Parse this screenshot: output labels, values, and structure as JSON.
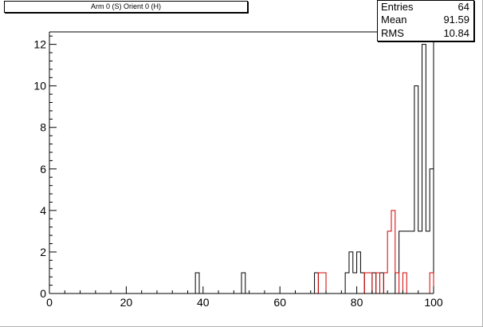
{
  "chart_data": {
    "type": "histogram",
    "title": "Arm 0 (S) Orient 0 (H)",
    "xlabel": "",
    "ylabel": "",
    "xlim": [
      0,
      100
    ],
    "ylim": [
      0,
      12.6
    ],
    "bin_width": 1,
    "x_ticks": [
      "0",
      "20",
      "40",
      "60",
      "80",
      "100"
    ],
    "y_ticks": [
      "0",
      "2",
      "4",
      "6",
      "8",
      "10",
      "12"
    ],
    "stats": {
      "entries_label": "Entries",
      "entries": "64",
      "mean_label": "Mean",
      "mean": "91.59",
      "rms_label": "RMS",
      "rms": "10.84"
    },
    "series": [
      {
        "color": "#000000",
        "bins": [
          {
            "x": 38,
            "y": 1
          },
          {
            "x": 50,
            "y": 1
          },
          {
            "x": 69,
            "y": 1
          },
          {
            "x": 77,
            "y": 1
          },
          {
            "x": 78,
            "y": 2
          },
          {
            "x": 79,
            "y": 1
          },
          {
            "x": 80,
            "y": 2
          },
          {
            "x": 81,
            "y": 1
          },
          {
            "x": 84,
            "y": 1
          },
          {
            "x": 86,
            "y": 1
          },
          {
            "x": 90,
            "y": 1
          },
          {
            "x": 91,
            "y": 3
          },
          {
            "x": 92,
            "y": 3
          },
          {
            "x": 93,
            "y": 3
          },
          {
            "x": 94,
            "y": 3
          },
          {
            "x": 95,
            "y": 10
          },
          {
            "x": 96,
            "y": 3
          },
          {
            "x": 97,
            "y": 12
          },
          {
            "x": 98,
            "y": 3
          },
          {
            "x": 99,
            "y": 6
          }
        ]
      },
      {
        "color": "#d40000",
        "bins": [
          {
            "x": 70,
            "y": 1
          },
          {
            "x": 71,
            "y": 1
          },
          {
            "x": 82,
            "y": 1
          },
          {
            "x": 83,
            "y": 1
          },
          {
            "x": 85,
            "y": 1
          },
          {
            "x": 87,
            "y": 1
          },
          {
            "x": 88,
            "y": 3
          },
          {
            "x": 89,
            "y": 4
          },
          {
            "x": 90,
            "y": 1
          },
          {
            "x": 92,
            "y": 1
          },
          {
            "x": 99,
            "y": 1
          }
        ]
      }
    ]
  }
}
